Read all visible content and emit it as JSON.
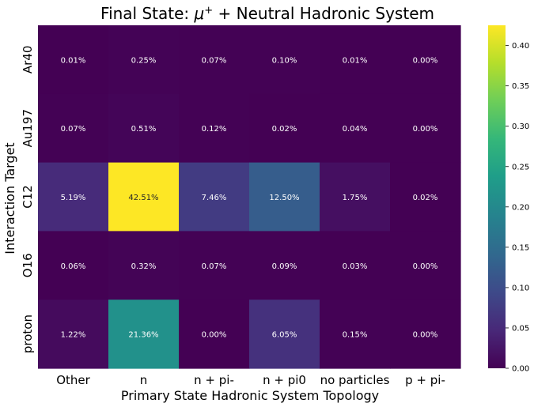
{
  "chart_data": {
    "type": "heatmap",
    "title_prefix": "Final State: ",
    "title_symbol": "μ",
    "title_superscript": "+",
    "title_suffix": " + Neutral Hadronic System",
    "xlabel": "Primary State Hadronic System Topology",
    "ylabel": "Interaction Target",
    "x_categories": [
      "Other",
      "n",
      "n + pi-",
      "n + pi0",
      "no particles",
      "p + pi-"
    ],
    "y_categories": [
      "Ar40",
      "Au197",
      "C12",
      "O16",
      "proton"
    ],
    "values": [
      [
        0.0001,
        0.0025,
        0.0007,
        0.001,
        0.0001,
        0.0
      ],
      [
        0.0007,
        0.0051,
        0.0012,
        0.0002,
        0.0004,
        0.0
      ],
      [
        0.0519,
        0.4251,
        0.0746,
        0.125,
        0.0175,
        0.0002
      ],
      [
        0.0006,
        0.0032,
        0.0007,
        0.0009,
        0.0003,
        0.0
      ],
      [
        0.0122,
        0.2136,
        0.0,
        0.0605,
        0.0015,
        0.0
      ]
    ],
    "annotations": [
      [
        "0.01%",
        "0.25%",
        "0.07%",
        "0.10%",
        "0.01%",
        "0.00%"
      ],
      [
        "0.07%",
        "0.51%",
        "0.12%",
        "0.02%",
        "0.04%",
        "0.00%"
      ],
      [
        "5.19%",
        "42.51%",
        "7.46%",
        "12.50%",
        "1.75%",
        "0.02%"
      ],
      [
        "0.06%",
        "0.32%",
        "0.07%",
        "0.09%",
        "0.03%",
        "0.00%"
      ],
      [
        "1.22%",
        "21.36%",
        "0.00%",
        "6.05%",
        "0.15%",
        "0.00%"
      ]
    ],
    "colormap": "viridis",
    "vmin": 0.0,
    "vmax": 0.4251,
    "colorbar_ticks": [
      "0.00",
      "0.05",
      "0.10",
      "0.15",
      "0.20",
      "0.25",
      "0.30",
      "0.35",
      "0.40"
    ],
    "colorbar_tick_values": [
      0.0,
      0.05,
      0.1,
      0.15,
      0.2,
      0.25,
      0.3,
      0.35,
      0.4
    ]
  }
}
